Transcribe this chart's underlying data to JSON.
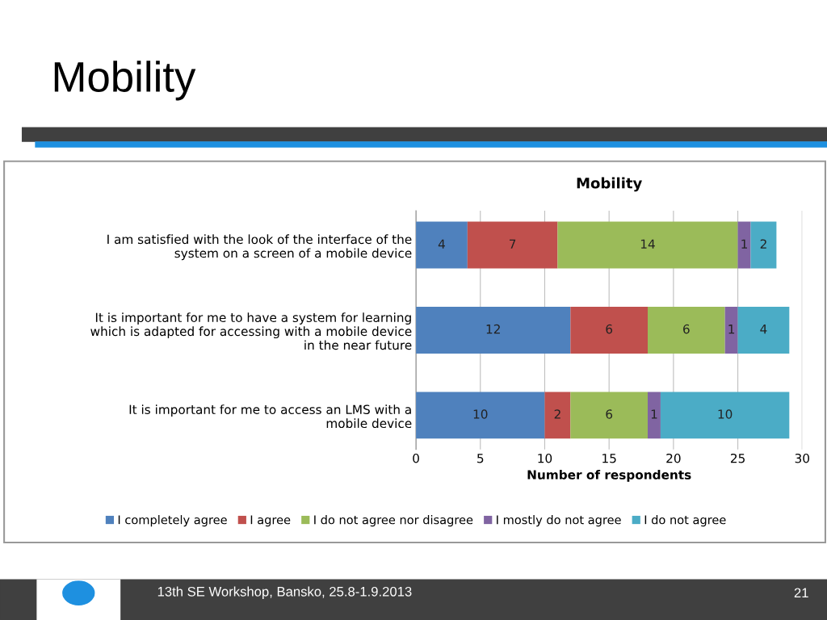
{
  "chart_data": {
    "type": "bar",
    "orientation": "horizontal",
    "stacked": true,
    "title": "Mobility",
    "xlabel": "Number of respondents",
    "categories": [
      "I am satisfied with the look of the interface of the system on a screen of a mobile device",
      "It is important for me to have a system for learning which is adapted for accessing with a mobile device in the near future",
      "It is important for me to access an LMS with a mobile device"
    ],
    "series": [
      {
        "name": "I completely agree",
        "color": "#4f81bd",
        "values": [
          4,
          12,
          10
        ]
      },
      {
        "name": "I agree",
        "color": "#c0504d",
        "values": [
          7,
          6,
          2
        ]
      },
      {
        "name": "I do not agree nor disagree",
        "color": "#9bbb59",
        "values": [
          14,
          6,
          6
        ]
      },
      {
        "name": "I mostly do not agree",
        "color": "#8064a2",
        "values": [
          1,
          1,
          1
        ]
      },
      {
        "name": "I do not agree",
        "color": "#4bacc6",
        "values": [
          2,
          4,
          10
        ]
      }
    ],
    "xlim": [
      0,
      30
    ],
    "xticks": [
      0,
      5,
      10,
      15,
      20,
      25,
      30
    ],
    "grid": "x",
    "legend": "bottom",
    "data_labels": true,
    "annotations": [
      "Mobility",
      "13th SE Workshop, Bansko, 25.8-1.9.2013",
      "21"
    ]
  }
}
